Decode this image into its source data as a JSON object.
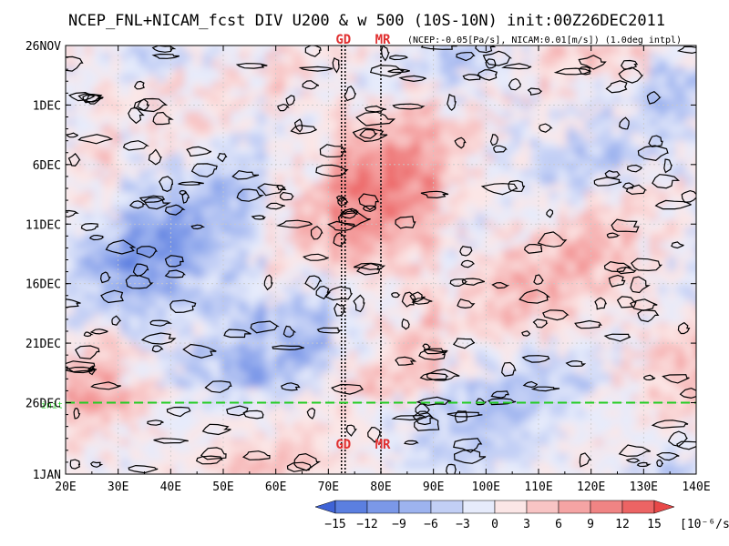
{
  "chart_data": {
    "type": "heatmap",
    "title": "NCEP_FNL+NICAM_fcst DIV U200 & w 500 (10S-10N) init:00Z26DEC2011",
    "subtitle": "(NCEP:-0.05[Pa/s], NICAM:0.01[m/s]) (1.0deg intpl)",
    "x_ticks": [
      "20E",
      "30E",
      "40E",
      "50E",
      "60E",
      "70E",
      "80E",
      "90E",
      "100E",
      "110E",
      "120E",
      "130E",
      "140E"
    ],
    "x_tick_values": [
      20,
      30,
      40,
      50,
      60,
      70,
      80,
      90,
      100,
      110,
      120,
      130,
      140
    ],
    "xlim": [
      20,
      140
    ],
    "y_ticks": [
      "26NOV",
      "1DEC",
      "6DEC",
      "11DEC",
      "16DEC",
      "21DEC",
      "26DEC",
      "1JAN"
    ],
    "y_tick_values": [
      "2011-11-26",
      "2011-12-01",
      "2011-12-06",
      "2011-12-11",
      "2011-12-16",
      "2011-12-21",
      "2011-12-26",
      "2012-01-01"
    ],
    "ylim": [
      "2011-11-26",
      "2012-01-01"
    ],
    "y_direction": "time increasing downward",
    "grid": true,
    "init_date": "2011-12-26",
    "init_label": "init",
    "vertical_markers": [
      {
        "label": "GD",
        "lon": 72.5,
        "color": "#e03030"
      },
      {
        "label": "MR",
        "lon": 80.0,
        "color": "#e03030"
      }
    ],
    "colorbar": {
      "levels": [
        "-15",
        "-12",
        "-9",
        "-6",
        "-3",
        "0",
        "3",
        "6",
        "9",
        "12",
        "15"
      ],
      "unit": "[10⁻⁶/s]",
      "colors": [
        "#3f63d6",
        "#5b7fe0",
        "#7b98e8",
        "#9db3ef",
        "#c2cff5",
        "#e6ebfb",
        "#fbe6e6",
        "#f8c4c4",
        "#f5a4a4",
        "#f08484",
        "#ec6464",
        "#e84848"
      ]
    },
    "colors": {
      "init_line": "#22cc22",
      "contour": "#000000",
      "grid": "#c8c8c8"
    }
  }
}
